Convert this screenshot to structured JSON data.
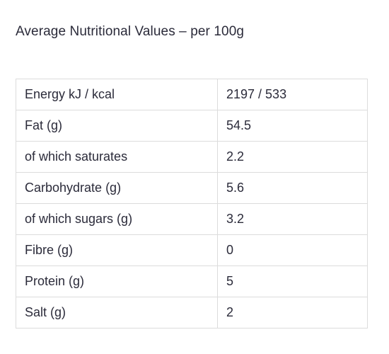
{
  "heading": "Average Nutritional Values – per 100g",
  "rows": [
    {
      "label": "Energy kJ / kcal",
      "value": "2197 / 533"
    },
    {
      "label": "Fat (g)",
      "value": "54.5"
    },
    {
      "label": "of which saturates",
      "value": "2.2"
    },
    {
      "label": "Carbohydrate (g)",
      "value": "5.6"
    },
    {
      "label": "of which sugars (g)",
      "value": "3.2"
    },
    {
      "label": "Fibre (g)",
      "value": "0"
    },
    {
      "label": "Protein (g)",
      "value": "5"
    },
    {
      "label": "Salt (g)",
      "value": "2"
    }
  ]
}
